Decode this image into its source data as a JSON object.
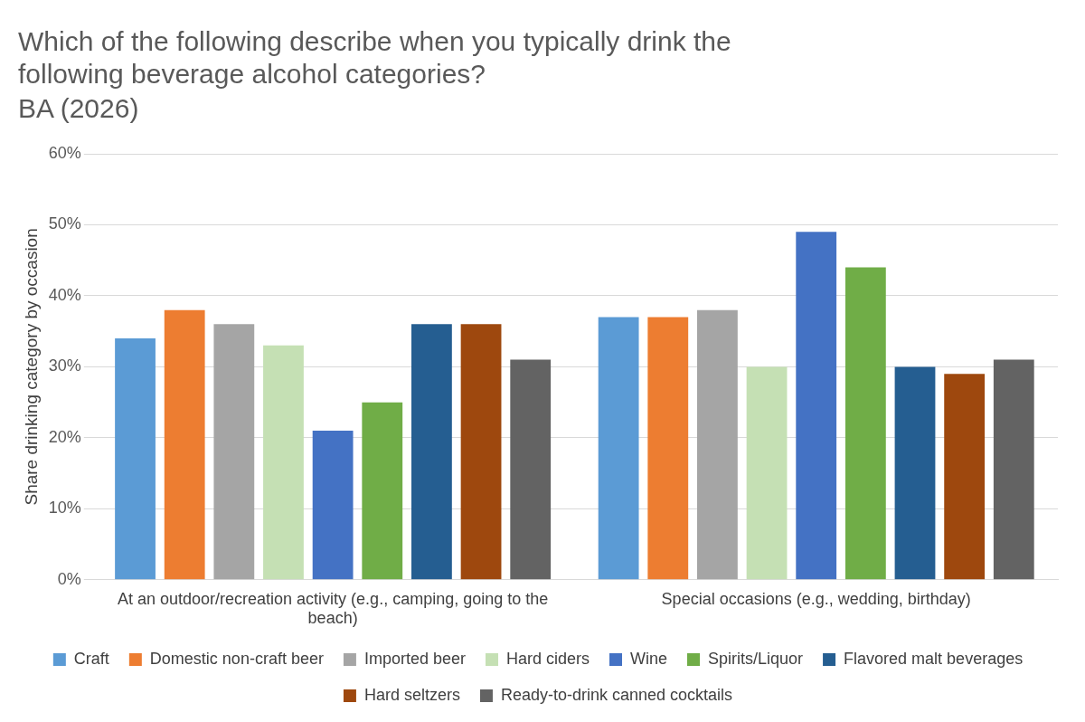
{
  "chart_data": {
    "type": "bar",
    "title": "Which of the following describe when you typically drink the following beverage alcohol categories?",
    "subtitle": "BA (2026)",
    "ylabel": "Share drinking category by occasion",
    "categories": [
      "At an outdoor/recreation activity (e.g., camping, going to the beach)",
      "Special occasions (e.g., wedding, birthday)"
    ],
    "series": [
      {
        "name": "Craft",
        "color": "#5b9bd5",
        "values": [
          34,
          37
        ]
      },
      {
        "name": "Domestic non-craft beer",
        "color": "#ed7d31",
        "values": [
          38,
          37
        ]
      },
      {
        "name": "Imported beer",
        "color": "#a5a5a5",
        "values": [
          36,
          38
        ]
      },
      {
        "name": "Hard ciders",
        "color": "#c5e0b4",
        "values": [
          33,
          30
        ]
      },
      {
        "name": "Wine",
        "color": "#4472c4",
        "values": [
          21,
          49
        ]
      },
      {
        "name": "Spirits/Liquor",
        "color": "#70ad47",
        "values": [
          25,
          44
        ]
      },
      {
        "name": "Flavored malt beverages",
        "color": "#255e91",
        "values": [
          36,
          30
        ]
      },
      {
        "name": "Hard seltzers",
        "color": "#9e480e",
        "values": [
          36,
          29
        ]
      },
      {
        "name": "Ready-to-drink canned cocktails",
        "color": "#636363",
        "values": [
          31,
          31
        ]
      }
    ],
    "ylim": [
      0,
      60
    ],
    "yticks": [
      {
        "value": 0,
        "label": "0%"
      },
      {
        "value": 10,
        "label": "10%"
      },
      {
        "value": 20,
        "label": "20%"
      },
      {
        "value": 30,
        "label": "30%"
      },
      {
        "value": 40,
        "label": "40%"
      },
      {
        "value": 50,
        "label": "50%"
      },
      {
        "value": 60,
        "label": "60%"
      }
    ],
    "grid": "y",
    "legend": "bottom"
  }
}
